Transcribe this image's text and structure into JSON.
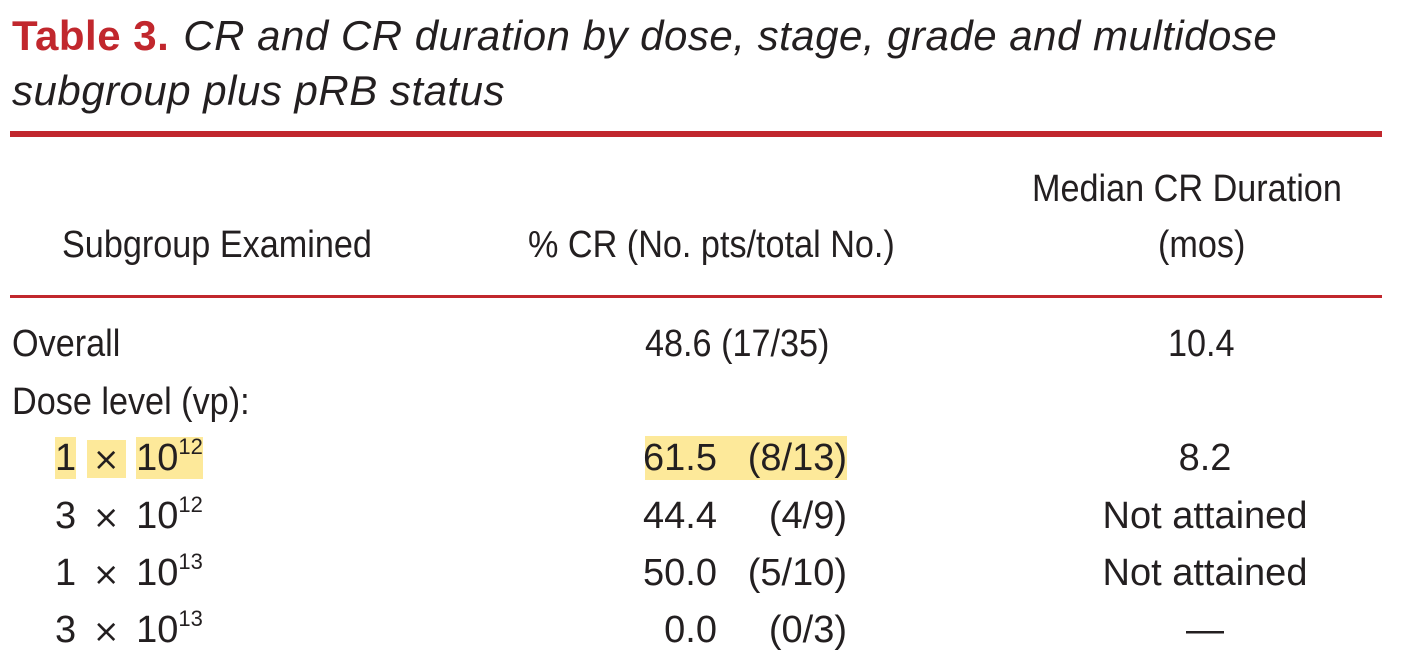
{
  "title": {
    "label": "Table 3.",
    "text": "CR and CR duration by dose, stage, grade and multidose subgroup plus pRB status"
  },
  "columns": {
    "subgroup": "Subgroup Examined",
    "cr": "% CR (No. pts/total No.)",
    "duration_line1": "Median CR Duration",
    "duration_line2": "(mos)"
  },
  "rows": {
    "overall": {
      "label": "Overall",
      "cr": "48.6 (17/35)",
      "duration": "10.4"
    },
    "dose_header": {
      "label": "Dose level (vp):"
    },
    "dose": [
      {
        "coef": "1",
        "times": "×",
        "base": "10",
        "exp": "12",
        "pct": "61.5",
        "frac": "(8/13)",
        "duration": "8.2",
        "highlighted": true
      },
      {
        "coef": "3",
        "times": "×",
        "base": "10",
        "exp": "12",
        "pct": "44.4",
        "frac": "(4/9)",
        "duration": "Not attained",
        "highlighted": false
      },
      {
        "coef": "1",
        "times": "×",
        "base": "10",
        "exp": "13",
        "pct": "50.0",
        "frac": "(5/10)",
        "duration": "Not attained",
        "highlighted": false
      },
      {
        "coef": "3",
        "times": "×",
        "base": "10",
        "exp": "13",
        "pct": "0.0",
        "frac": "(0/3)",
        "duration": "—",
        "highlighted": false
      }
    ]
  },
  "colors": {
    "accent": "#c1272d",
    "highlight": "#fde99a",
    "text": "#231f20"
  }
}
